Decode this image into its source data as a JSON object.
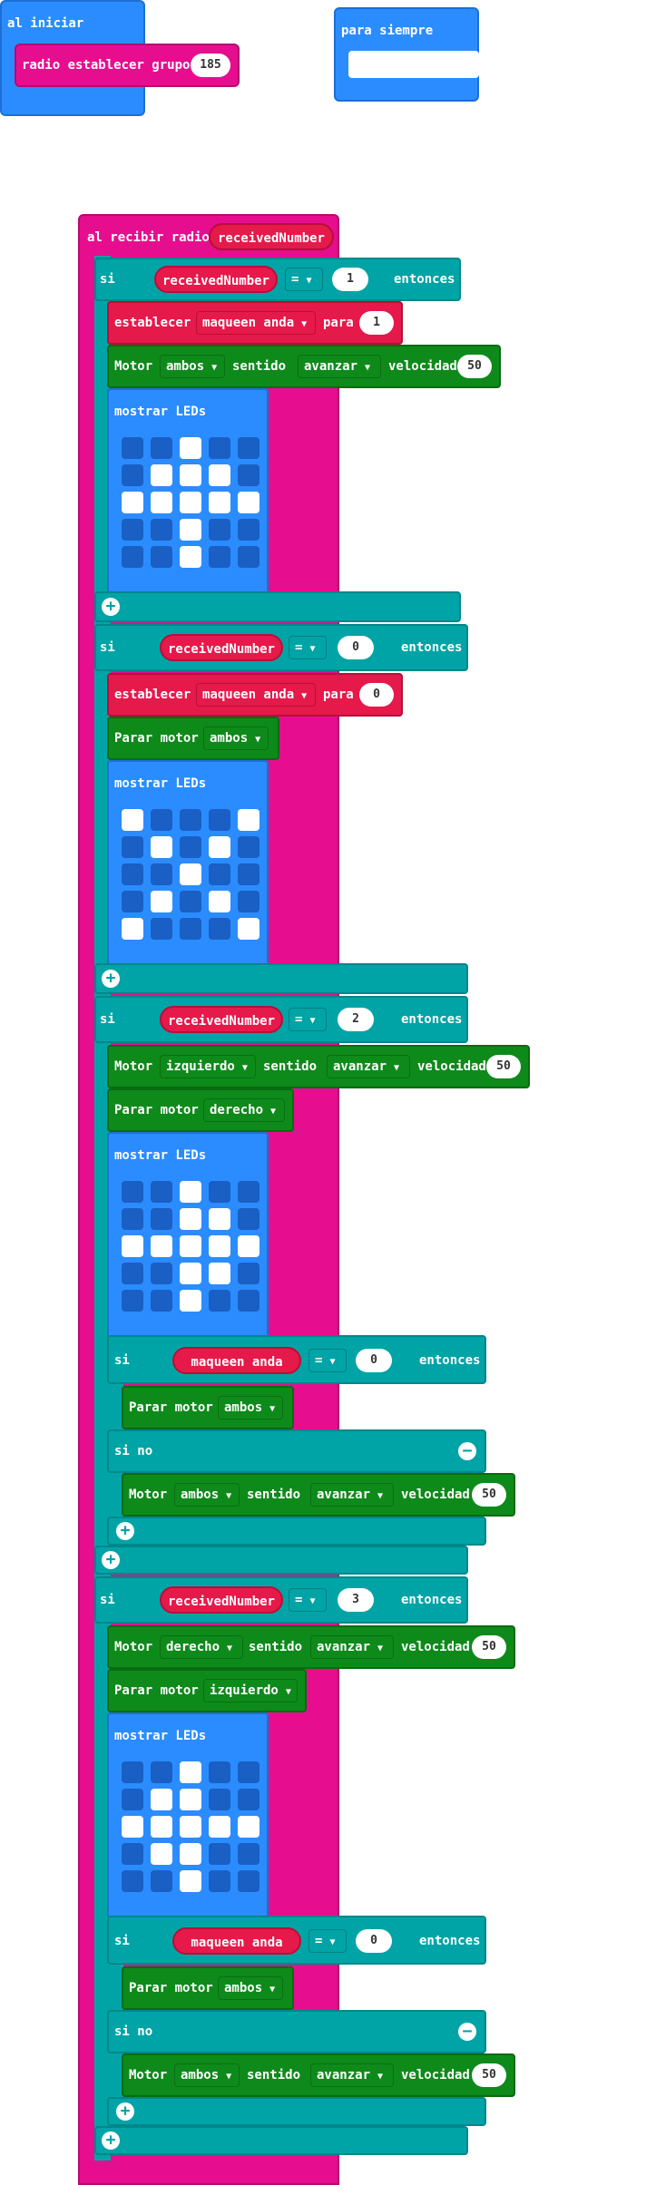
{
  "on_start": {
    "label": "al iniciar",
    "radio_group_label": "radio establecer grupo",
    "radio_group_value": "185"
  },
  "forever": {
    "label": "para siempre"
  },
  "on_received": {
    "label": "al recibir radio",
    "variable": "receivedNumber",
    "if_blocks": [
      {
        "si": "si",
        "variable": "receivedNumber",
        "op": "=",
        "value": "1",
        "entonces": "entonces",
        "set_label": "establecer",
        "set_var": "maqueen anda",
        "set_para": "para",
        "set_value": "1",
        "motor_label": "Motor",
        "motor_which": "ambos",
        "sentido": "sentido",
        "direction": "avanzar",
        "velocidad": "velocidad",
        "speed": "50",
        "show_leds": "mostrar LEDs",
        "leds": [
          0,
          0,
          1,
          0,
          0,
          0,
          1,
          1,
          1,
          0,
          1,
          1,
          1,
          1,
          1,
          0,
          0,
          1,
          0,
          0,
          0,
          0,
          1,
          0,
          0
        ]
      },
      {
        "si": "si",
        "variable": "receivedNumber",
        "op": "=",
        "value": "0",
        "entonces": "entonces",
        "set_label": "establecer",
        "set_var": "maqueen anda",
        "set_para": "para",
        "set_value": "0",
        "stop_label": "Parar motor",
        "stop_which": "ambos",
        "show_leds": "mostrar LEDs",
        "leds": [
          1,
          0,
          0,
          0,
          1,
          0,
          1,
          0,
          1,
          0,
          0,
          0,
          1,
          0,
          0,
          0,
          1,
          0,
          1,
          0,
          1,
          0,
          0,
          0,
          1
        ]
      },
      {
        "si": "si",
        "variable": "receivedNumber",
        "op": "=",
        "value": "2",
        "entonces": "entonces",
        "motor_label": "Motor",
        "motor_which": "izquierdo",
        "sentido": "sentido",
        "direction": "avanzar",
        "velocidad": "velocidad",
        "speed": "50",
        "stop_label": "Parar motor",
        "stop_which": "derecho",
        "show_leds": "mostrar LEDs",
        "leds": [
          0,
          0,
          1,
          0,
          0,
          0,
          0,
          1,
          1,
          0,
          1,
          1,
          1,
          1,
          1,
          0,
          0,
          1,
          1,
          0,
          0,
          0,
          1,
          0,
          0
        ],
        "inner_if": {
          "si": "si",
          "variable": "maqueen anda",
          "op": "=",
          "value": "0",
          "entonces": "entonces",
          "stop_label": "Parar motor",
          "stop_which": "ambos",
          "else_label": "si no",
          "motor_label": "Motor",
          "motor_which": "ambos",
          "sentido": "sentido",
          "direction": "avanzar",
          "velocidad": "velocidad",
          "speed": "50"
        }
      },
      {
        "si": "si",
        "variable": "receivedNumber",
        "op": "=",
        "value": "3",
        "entonces": "entonces",
        "motor_label": "Motor",
        "motor_which": "derecho",
        "sentido": "sentido",
        "direction": "avanzar",
        "velocidad": "velocidad",
        "speed": "50",
        "stop_label": "Parar motor",
        "stop_which": "izquierdo",
        "show_leds": "mostrar LEDs",
        "leds": [
          0,
          0,
          1,
          0,
          0,
          0,
          1,
          1,
          0,
          0,
          1,
          1,
          1,
          1,
          1,
          0,
          1,
          1,
          0,
          0,
          0,
          0,
          1,
          0,
          0
        ],
        "inner_if": {
          "si": "si",
          "variable": "maqueen anda",
          "op": "=",
          "value": "0",
          "entonces": "entonces",
          "stop_label": "Parar motor",
          "stop_which": "ambos",
          "else_label": "si no",
          "motor_label": "Motor",
          "motor_which": "ambos",
          "sentido": "sentido",
          "direction": "avanzar",
          "velocidad": "velocidad",
          "speed": "50"
        }
      }
    ]
  },
  "colors": {
    "event_magenta": "#e60e8f",
    "logic_cyan": "#00a4a6",
    "motor_green": "#0e8a1a",
    "variable_red": "#e6194b",
    "basic_blue": "#2b8cff",
    "led_off": "#1a5fc4",
    "led_on": "#ffffff"
  },
  "icons": {
    "add": "plus-circle-icon",
    "remove": "minus-circle-icon",
    "dropdown": "caret-down-icon"
  }
}
